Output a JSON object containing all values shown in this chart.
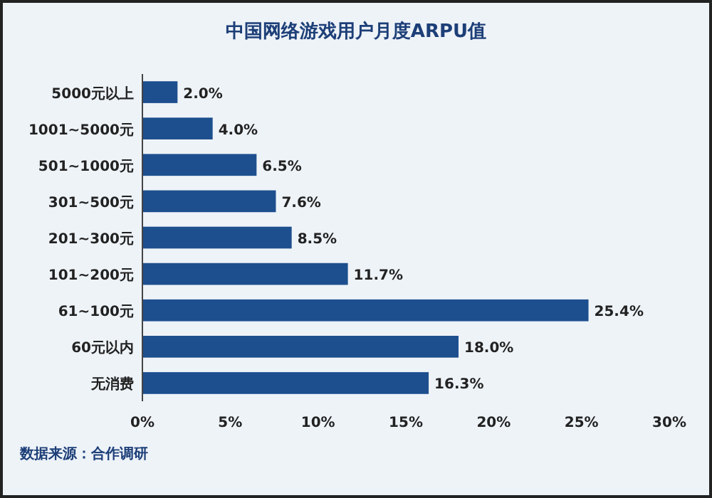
{
  "chart_data": {
    "type": "bar",
    "orientation": "horizontal",
    "title": "中国网络游戏用户月度ARPU值",
    "categories": [
      "5000元以上",
      "1001~5000元",
      "501~1000元",
      "301~500元",
      "201~300元",
      "101~200元",
      "61~100元",
      "60元以内",
      "无消费"
    ],
    "values": [
      2.0,
      4.0,
      6.5,
      7.6,
      8.5,
      11.7,
      25.4,
      18.0,
      16.3
    ],
    "value_labels": [
      "2.0%",
      "4.0%",
      "6.5%",
      "7.6%",
      "8.5%",
      "11.7%",
      "25.4%",
      "18.0%",
      "16.3%"
    ],
    "color": "#1d4f8e",
    "xlim": [
      0,
      30
    ],
    "xticks": [
      {
        "value": 0,
        "label": "0%"
      },
      {
        "value": 5,
        "label": "5%"
      },
      {
        "value": 10,
        "label": "10%"
      },
      {
        "value": 15,
        "label": "15%"
      },
      {
        "value": 20,
        "label": "20%"
      },
      {
        "value": 25,
        "label": "25%"
      },
      {
        "value": 30,
        "label": "30%"
      }
    ],
    "grid": false,
    "annotations": [
      "数据来源：合作调研"
    ]
  }
}
